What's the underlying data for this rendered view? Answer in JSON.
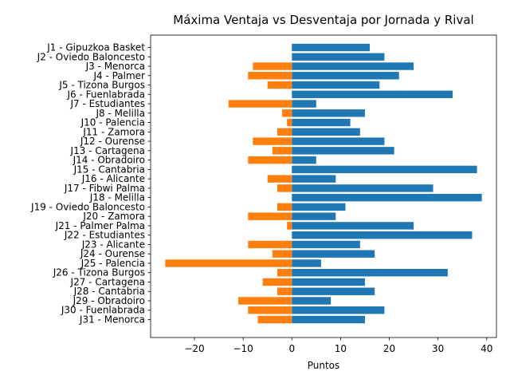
{
  "chart_data": {
    "type": "bar",
    "orientation": "horizontal",
    "title": "Máxima Ventaja vs Desventaja por Jornada y Rival",
    "xlabel": "Puntos",
    "ylabel": "",
    "xlim": [
      -29,
      42
    ],
    "xticks": [
      -20,
      -10,
      0,
      10,
      20,
      30,
      40
    ],
    "xtick_labels": [
      "−20",
      "−10",
      "0",
      "10",
      "20",
      "30",
      "40"
    ],
    "grid": false,
    "legend": "none",
    "categories": [
      "J1 - Gipuzkoa Basket",
      "J2 - Oviedo Baloncesto",
      "J3 - Menorca",
      "J4 - Palmer",
      "J5 - Tizona Burgos",
      "J6 - Fuenlabrada",
      "J7 - Estudiantes",
      "J8 - Melilla",
      "J10 - Palencia ",
      "J11 - Zamora",
      "J12 - Ourense",
      "J13 - Cartagena",
      "J14 - Obradoiro",
      "J15 - Cantabria",
      "J16 - Alicante",
      "J17 - Fibwi Palma",
      "J18 - Melilla ",
      "J19 - Oviedo Baloncesto",
      "J20 - Zamora",
      "J21 - Palmer Palma",
      "J22 - Estudiantes",
      "J23 - Alicante",
      "J24 - Ourense",
      "J25 - Palencia ",
      "J26 - Tizona Burgos",
      "J27 - Cartagena",
      "J28 - Cantabria",
      "J29 - Obradoiro",
      "J30 - Fuenlabrada",
      "J31 - Menorca"
    ],
    "series": [
      {
        "color": "#1f77b4",
        "values": [
          16,
          19,
          25,
          22,
          18,
          33,
          5,
          15,
          12,
          14,
          19,
          21,
          5,
          38,
          9,
          29,
          39,
          11,
          9,
          25,
          37,
          14,
          17,
          6,
          32,
          15,
          17,
          8,
          19,
          15
        ]
      },
      {
        "color": "#ff7f0e",
        "values": [
          0,
          0,
          -8,
          -9,
          -5,
          0,
          -13,
          -2,
          -1,
          -3,
          -8,
          -4,
          -9,
          0,
          -5,
          -3,
          0,
          -3,
          -9,
          -1,
          0,
          -9,
          -4,
          -26,
          -3,
          -6,
          -3,
          -11,
          -9,
          -7
        ]
      }
    ]
  }
}
